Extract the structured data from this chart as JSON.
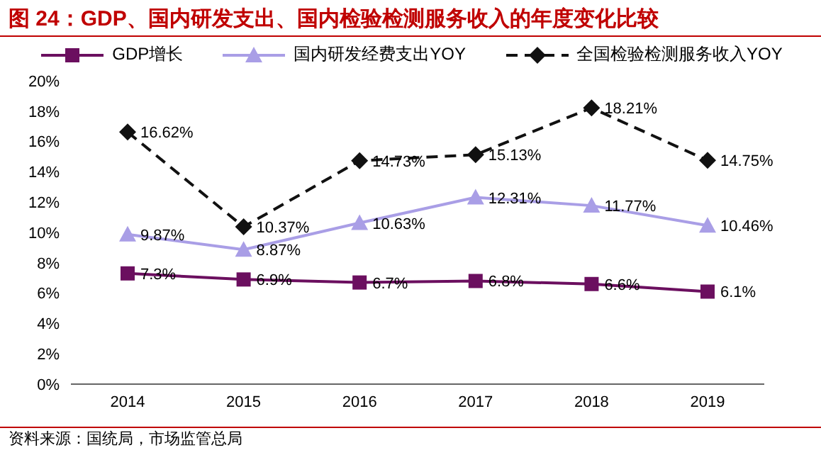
{
  "chart_data": {
    "type": "line",
    "title": "图 24：GDP、国内研发支出、国内检验检测服务收入的年度变化比较",
    "annotations": [
      "资料来源：国统局，市场监管总局"
    ],
    "categories": [
      "2014",
      "2015",
      "2016",
      "2017",
      "2018",
      "2019"
    ],
    "series": [
      {
        "name": "GDP增长",
        "color": "#6b0f5f",
        "marker": "square",
        "line_style": "solid",
        "values": [
          7.3,
          6.9,
          6.7,
          6.8,
          6.6,
          6.1
        ],
        "value_labels": [
          "7.3%",
          "6.9%",
          "6.7%",
          "6.8%",
          "6.6%",
          "6.1%"
        ]
      },
      {
        "name": "国内研发经费支出YOY",
        "color": "#a99ee6",
        "marker": "triangle",
        "line_style": "solid",
        "values": [
          9.87,
          8.87,
          10.63,
          12.31,
          11.77,
          10.46
        ],
        "value_labels": [
          "9.87%",
          "8.87%",
          "10.63%",
          "12.31%",
          "11.77%",
          "10.46%"
        ]
      },
      {
        "name": "全国检验检测服务收入YOY",
        "color": "#111111",
        "marker": "diamond",
        "line_style": "dashed",
        "values": [
          16.62,
          10.37,
          14.73,
          15.13,
          18.21,
          14.75
        ],
        "value_labels": [
          "16.62%",
          "10.37%",
          "14.73%",
          "15.13%",
          "18.21%",
          "14.75%"
        ]
      }
    ],
    "ylim": [
      0,
      20
    ],
    "yticks": [
      {
        "value": 0,
        "label": "0%"
      },
      {
        "value": 2,
        "label": "2%"
      },
      {
        "value": 4,
        "label": "4%"
      },
      {
        "value": 6,
        "label": "6%"
      },
      {
        "value": 8,
        "label": "8%"
      },
      {
        "value": 10,
        "label": "10%"
      },
      {
        "value": 12,
        "label": "12%"
      },
      {
        "value": 14,
        "label": "14%"
      },
      {
        "value": 16,
        "label": "16%"
      },
      {
        "value": 18,
        "label": "18%"
      },
      {
        "value": 20,
        "label": "20%"
      }
    ],
    "grid": false,
    "legend": "top"
  }
}
